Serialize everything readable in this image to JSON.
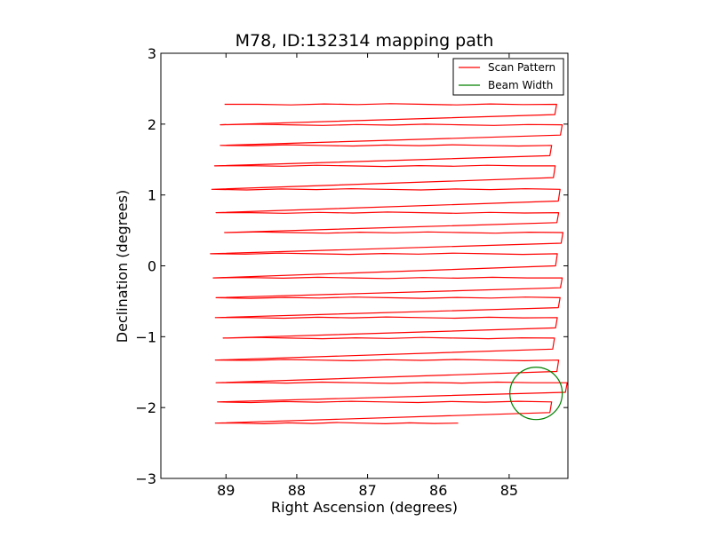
{
  "chart_data": {
    "type": "line",
    "title": "M78, ID:132314 mapping path",
    "xlabel": "Right Ascension (degrees)",
    "ylabel": "Declination (degrees)",
    "xlim": [
      89.92,
      84.17
    ],
    "ylim": [
      -3,
      3
    ],
    "x_ticks": [
      "89",
      "88",
      "87",
      "86",
      "85"
    ],
    "x_tick_values": [
      89,
      88,
      87,
      86,
      85
    ],
    "y_ticks": [
      "3",
      "2",
      "1",
      "0",
      "−1",
      "−2",
      "−3"
    ],
    "y_tick_values": [
      3,
      2,
      1,
      0,
      -1,
      -2,
      -3
    ],
    "grid": false,
    "legend_position": "top-right",
    "series": [
      {
        "name": "Scan Pattern",
        "color": "#ff0000",
        "rows": [
          {
            "y": 2.28,
            "x_east": 89.02,
            "x_west": 84.33
          },
          {
            "y": 1.99,
            "x_east": 89.08,
            "x_west": 84.25
          },
          {
            "y": 1.7,
            "x_east": 89.08,
            "x_west": 84.4
          },
          {
            "y": 1.41,
            "x_east": 89.16,
            "x_west": 84.35
          },
          {
            "y": 1.08,
            "x_east": 89.2,
            "x_west": 84.28
          },
          {
            "y": 0.75,
            "x_east": 89.14,
            "x_west": 84.3
          },
          {
            "y": 0.47,
            "x_east": 89.02,
            "x_west": 84.24
          },
          {
            "y": 0.17,
            "x_east": 89.22,
            "x_west": 84.32
          },
          {
            "y": -0.17,
            "x_east": 89.18,
            "x_west": 84.25
          },
          {
            "y": -0.45,
            "x_east": 89.14,
            "x_west": 84.28
          },
          {
            "y": -0.73,
            "x_east": 89.15,
            "x_west": 84.32
          },
          {
            "y": -1.02,
            "x_east": 89.04,
            "x_west": 84.36
          },
          {
            "y": -1.33,
            "x_east": 89.15,
            "x_west": 84.3
          },
          {
            "y": -1.65,
            "x_east": 89.14,
            "x_west": 84.18
          },
          {
            "y": -1.92,
            "x_east": 89.12,
            "x_west": 84.4
          },
          {
            "y": -2.22,
            "x_east": 89.15,
            "x_west": 85.72
          }
        ]
      },
      {
        "name": "Beam Width",
        "color": "#008000",
        "circle": {
          "center_x": 84.62,
          "center_y": -1.8,
          "radius_deg": 0.37
        }
      }
    ]
  }
}
